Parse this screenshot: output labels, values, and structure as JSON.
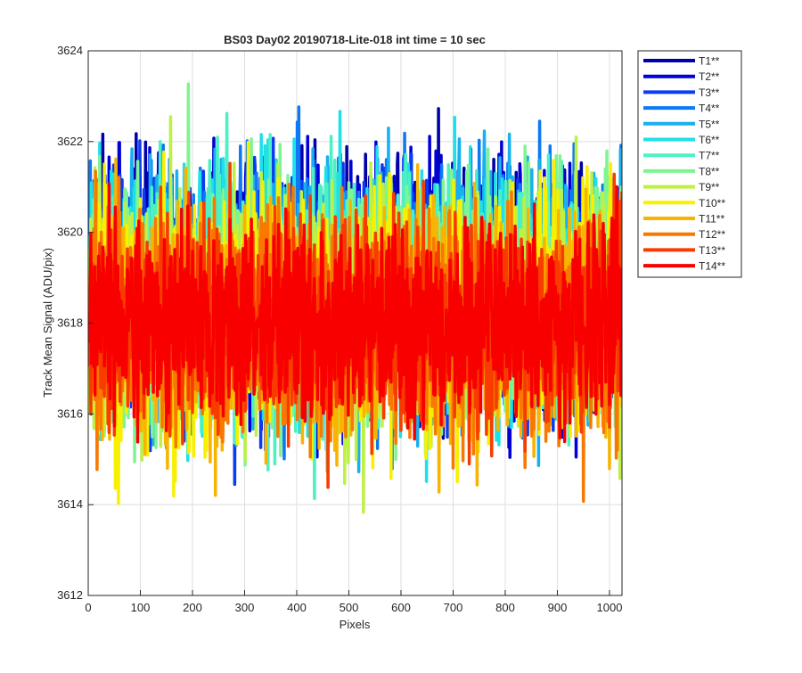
{
  "chart_data": {
    "type": "line",
    "title": "BS03 Day02 20190718-Lite-018 int time = 10 sec",
    "xlabel": "Pixels",
    "ylabel": "Track Mean Signal (ADU/pix)",
    "xlim": [
      0,
      1024
    ],
    "ylim": [
      3612,
      3624
    ],
    "xticks": [
      0,
      100,
      200,
      300,
      400,
      500,
      600,
      700,
      800,
      900,
      1000
    ],
    "yticks": [
      3612,
      3614,
      3616,
      3618,
      3620,
      3622,
      3624
    ],
    "grid": true,
    "legend_position": "outside-right",
    "n_points_per_series": 1024,
    "series": [
      {
        "name": "T1**",
        "color": "#0000a8",
        "mean": 3618.9,
        "std": 1.3
      },
      {
        "name": "T2**",
        "color": "#0000d8",
        "mean": 3618.85,
        "std": 1.3
      },
      {
        "name": "T3**",
        "color": "#0a3cf0",
        "mean": 3618.8,
        "std": 1.3
      },
      {
        "name": "T4**",
        "color": "#0f78f5",
        "mean": 3618.75,
        "std": 1.3
      },
      {
        "name": "T5**",
        "color": "#18b0ee",
        "mean": 3618.7,
        "std": 1.3
      },
      {
        "name": "T6**",
        "color": "#1ee0e8",
        "mean": 3618.65,
        "std": 1.3
      },
      {
        "name": "T7**",
        "color": "#4cf0c4",
        "mean": 3618.55,
        "std": 1.3
      },
      {
        "name": "T8**",
        "color": "#80f492",
        "mean": 3618.45,
        "std": 1.3
      },
      {
        "name": "T9**",
        "color": "#bef046",
        "mean": 3618.3,
        "std": 1.3
      },
      {
        "name": "T10**",
        "color": "#f8f000",
        "mean": 3618.1,
        "std": 1.3
      },
      {
        "name": "T11**",
        "color": "#f8b400",
        "mean": 3618.0,
        "std": 1.2
      },
      {
        "name": "T12**",
        "color": "#f87800",
        "mean": 3618.0,
        "std": 1.2
      },
      {
        "name": "T13**",
        "color": "#f83c00",
        "mean": 3618.0,
        "std": 1.1
      },
      {
        "name": "T14**",
        "color": "#f80000",
        "mean": 3618.0,
        "std": 1.0
      }
    ]
  }
}
